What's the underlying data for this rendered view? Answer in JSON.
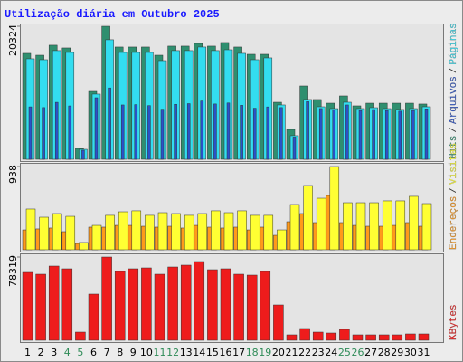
{
  "title": "Utilização diária em Outubro 2025",
  "legend_separator": "/",
  "chart_data": [
    {
      "type": "bar",
      "ylim": [
        0,
        20324
      ],
      "yticks": [
        20324
      ],
      "series": [
        {
          "name": "Hits",
          "color": "#2f8f6f",
          "values": [
            16180,
            15900,
            17430,
            17010,
            1660,
            10370,
            20324,
            17150,
            17150,
            17150,
            15900,
            17290,
            17290,
            17700,
            17290,
            17840,
            17150,
            16040,
            16040,
            8710,
            4560,
            11200,
            9130,
            8570,
            9680,
            8160,
            8570,
            8570,
            8570,
            8570,
            8440
          ]
        },
        {
          "name": "Arquivos",
          "color": "#2a52c8",
          "values": [
            8010,
            7900,
            8700,
            8150,
            1380,
            9400,
            10900,
            8300,
            8350,
            8200,
            7650,
            8400,
            8500,
            8900,
            8450,
            8600,
            8250,
            7800,
            8000,
            7900,
            3400,
            8800,
            7750,
            7500,
            8300,
            7450,
            7600,
            7450,
            7350,
            7450,
            7700
          ]
        },
        {
          "name": "Páginas",
          "color": "#33ddf0",
          "values": [
            15350,
            15210,
            16600,
            16320,
            1520,
            9960,
            18260,
            16320,
            16320,
            16320,
            15070,
            16600,
            16600,
            17150,
            16600,
            16730,
            16180,
            15210,
            15490,
            8300,
            3600,
            9130,
            8020,
            7740,
            8710,
            7740,
            7880,
            7740,
            7610,
            7740,
            8020
          ]
        }
      ]
    },
    {
      "type": "bar",
      "ylim": [
        0,
        938
      ],
      "yticks": [
        938
      ],
      "series": [
        {
          "name": "Endereços",
          "color": "#ff9a1a",
          "values": [
            224,
            235,
            245,
            204,
            71,
            255,
            255,
            275,
            275,
            265,
            255,
            265,
            245,
            275,
            255,
            245,
            255,
            224,
            255,
            163,
            316,
            408,
            306,
            612,
            306,
            275,
            265,
            265,
            275,
            306,
            265
          ]
        },
        {
          "name": "Visitas",
          "color": "#ffff33",
          "values": [
            459,
            367,
            408,
            377,
            82,
            275,
            388,
            428,
            439,
            388,
            418,
            408,
            388,
            408,
            439,
            418,
            439,
            388,
            388,
            224,
            510,
            724,
            581,
            938,
            530,
            530,
            530,
            551,
            551,
            602,
            520
          ]
        }
      ]
    },
    {
      "type": "bar",
      "ylim": [
        0,
        78319
      ],
      "yticks": [
        78319
      ],
      "categories": [
        "1",
        "2",
        "3",
        "4",
        "5",
        "6",
        "7",
        "8",
        "9",
        "10",
        "11",
        "12",
        "13",
        "14",
        "15",
        "16",
        "17",
        "18",
        "19",
        "20",
        "21",
        "22",
        "23",
        "24",
        "25",
        "26",
        "27",
        "28",
        "29",
        "30",
        "31"
      ],
      "label_colors": [
        "#000",
        "#000",
        "#000",
        "#2e8b57",
        "#2e8b57",
        "#000",
        "#000",
        "#000",
        "#000",
        "#000",
        "#2e8b57",
        "#2e8b57",
        "#000",
        "#000",
        "#000",
        "#000",
        "#000",
        "#2e8b57",
        "#2e8b57",
        "#000",
        "#000",
        "#000",
        "#000",
        "#000",
        "#2e8b57",
        "#2e8b57",
        "#000",
        "#000",
        "#000",
        "#000",
        "#000"
      ],
      "series": [
        {
          "name": "KBytes",
          "color": "#ee1c1c",
          "values": [
            63850,
            62140,
            69800,
            67250,
            7660,
            43420,
            78319,
            64700,
            67250,
            68100,
            62140,
            68950,
            70660,
            74060,
            66400,
            67250,
            62140,
            61290,
            64700,
            33200,
            5110,
            11070,
            7660,
            6810,
            10220,
            5110,
            5110,
            5110,
            5110,
            5960,
            5960
          ]
        }
      ]
    }
  ]
}
